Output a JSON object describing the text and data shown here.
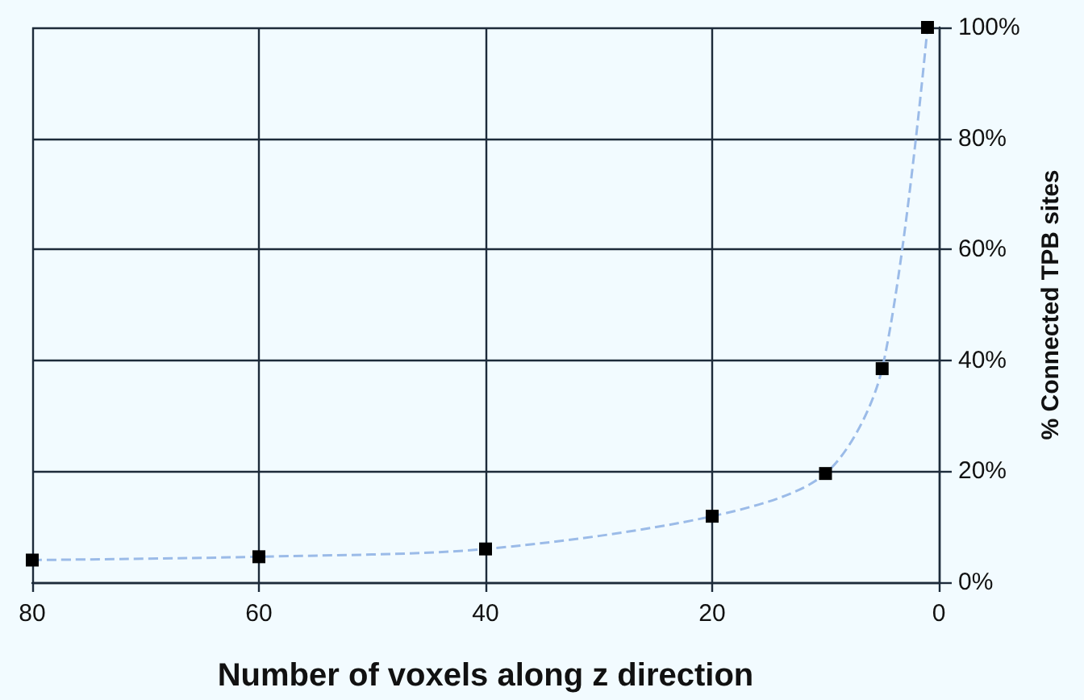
{
  "chart_data": {
    "type": "line",
    "xlabel": "Number of voxels along z direction",
    "ylabel": "% Connected TPB sites",
    "x": [
      80,
      60,
      40,
      20,
      10,
      5,
      1
    ],
    "series": [
      {
        "color": "#9bbbe8",
        "values": [
          4.0,
          4.6,
          6.0,
          11.9,
          19.6,
          38.5,
          100
        ]
      }
    ],
    "xlim": [
      80,
      0
    ],
    "xticks": [
      80,
      60,
      40,
      20,
      0
    ],
    "ylim": [
      0,
      100
    ],
    "yticks": [
      {
        "value": 0,
        "label": "0%"
      },
      {
        "value": 20,
        "label": "20%"
      },
      {
        "value": 40,
        "label": "40%"
      },
      {
        "value": 60,
        "label": "60%"
      },
      {
        "value": 80,
        "label": "80%"
      },
      {
        "value": 100,
        "label": "100%"
      }
    ],
    "grid": true,
    "marker": "square",
    "line_style": "dashed"
  }
}
